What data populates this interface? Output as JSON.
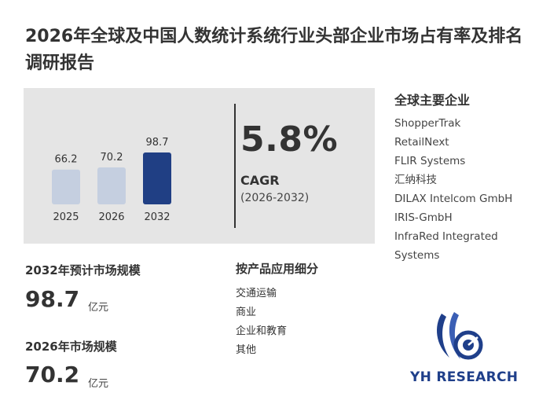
{
  "title": "2026年全球及中国人数统计系统行业头部企业市场占有率及排名调研报告",
  "chart_data": {
    "type": "bar",
    "categories": [
      "2025",
      "2026",
      "2032"
    ],
    "values": [
      66.2,
      70.2,
      98.7
    ],
    "colors": [
      "#c5cfe0",
      "#c5cfe0",
      "#203f84"
    ]
  },
  "cagr": {
    "value": "5.8%",
    "label": "CAGR",
    "period": "(2026-2032)"
  },
  "companies": {
    "title": "全球主要企业",
    "items": [
      "ShopperTrak",
      "RetailNext",
      "FLIR Systems",
      "汇纳科技",
      "DILAX Intelcom GmbH",
      "IRIS-GmbH",
      "InfraRed Integrated",
      "Systems"
    ]
  },
  "market_2032": {
    "label": "2032年预计市场规模",
    "value": "98.7",
    "unit": "亿元"
  },
  "market_2026": {
    "label": "2026年市场规模",
    "value": "70.2",
    "unit": "亿元"
  },
  "segments": {
    "title": "按产品应用细分",
    "items": [
      "交通运输",
      "商业",
      "企业和教育",
      "其他"
    ]
  },
  "logo": {
    "text": "YH RESEARCH",
    "icon": "yh-research-logo-icon"
  }
}
